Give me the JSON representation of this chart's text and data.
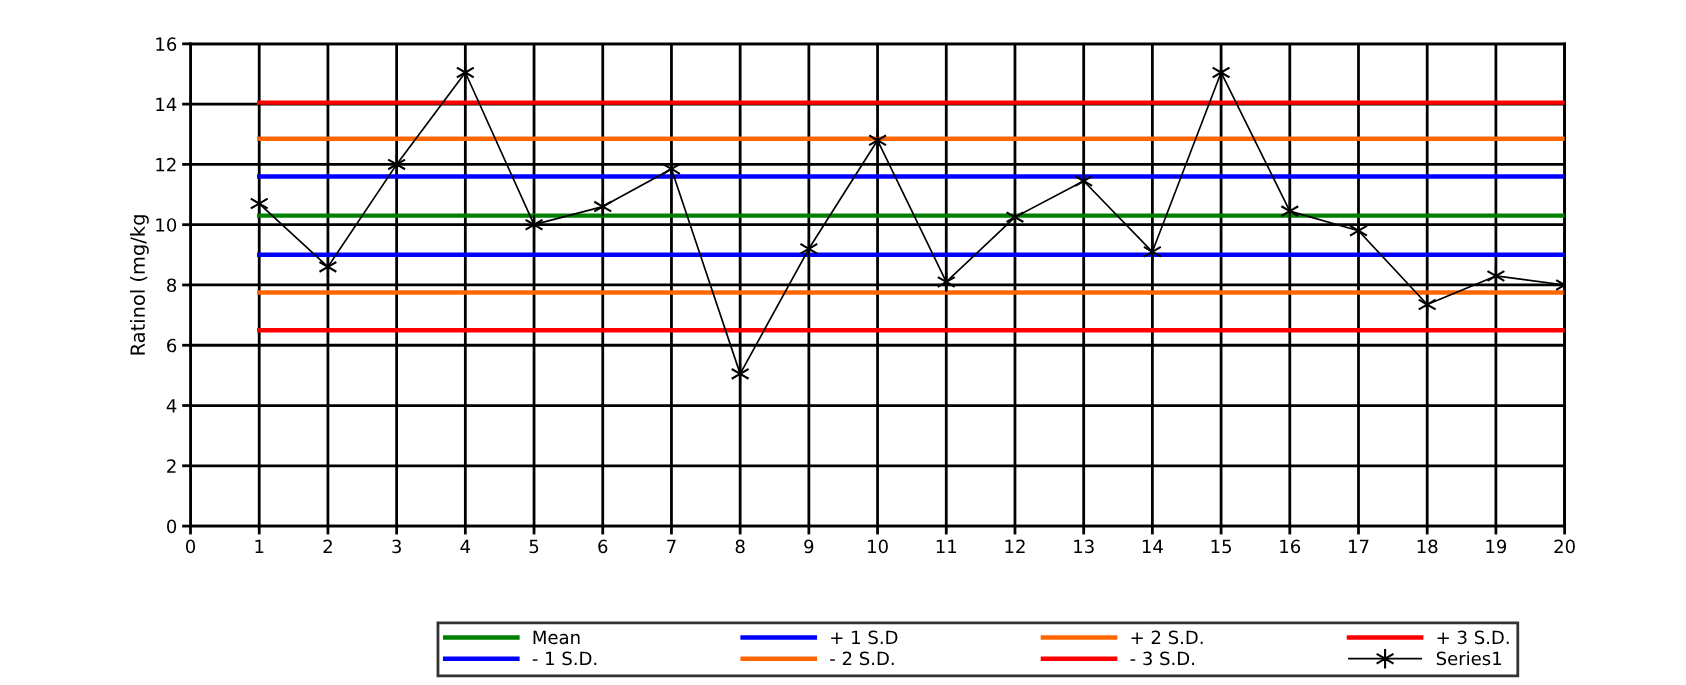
{
  "chart_data": {
    "type": "line",
    "ylabel": "Ratinol (mg/kg",
    "x": [
      1,
      2,
      3,
      4,
      5,
      6,
      7,
      8,
      9,
      10,
      11,
      12,
      13,
      14,
      15,
      16,
      17,
      18,
      19,
      20
    ],
    "xlim": [
      0,
      20
    ],
    "xticks": [
      0,
      1,
      2,
      3,
      4,
      5,
      6,
      7,
      8,
      9,
      10,
      11,
      12,
      13,
      14,
      15,
      16,
      17,
      18,
      19,
      20
    ],
    "ylim": [
      0,
      16
    ],
    "yticks": [
      0,
      2,
      4,
      6,
      8,
      10,
      12,
      14,
      16
    ],
    "grid": true,
    "legend": "bottom",
    "series": [
      {
        "name": "Mean",
        "color": "#008000",
        "marker": "none",
        "values": [
          10.3,
          10.3,
          10.3,
          10.3,
          10.3,
          10.3,
          10.3,
          10.3,
          10.3,
          10.3,
          10.3,
          10.3,
          10.3,
          10.3,
          10.3,
          10.3,
          10.3,
          10.3,
          10.3,
          10.3
        ]
      },
      {
        "name": "+ 1 S.D",
        "color": "#0000ff",
        "marker": "none",
        "values": [
          11.6,
          11.6,
          11.6,
          11.6,
          11.6,
          11.6,
          11.6,
          11.6,
          11.6,
          11.6,
          11.6,
          11.6,
          11.6,
          11.6,
          11.6,
          11.6,
          11.6,
          11.6,
          11.6,
          11.6
        ]
      },
      {
        "name": "+ 2 S.D.",
        "color": "#ff6600",
        "marker": "none",
        "values": [
          12.85,
          12.85,
          12.85,
          12.85,
          12.85,
          12.85,
          12.85,
          12.85,
          12.85,
          12.85,
          12.85,
          12.85,
          12.85,
          12.85,
          12.85,
          12.85,
          12.85,
          12.85,
          12.85,
          12.85
        ]
      },
      {
        "name": "+ 3 S.D.",
        "color": "#ff0000",
        "marker": "none",
        "values": [
          14.05,
          14.05,
          14.05,
          14.05,
          14.05,
          14.05,
          14.05,
          14.05,
          14.05,
          14.05,
          14.05,
          14.05,
          14.05,
          14.05,
          14.05,
          14.05,
          14.05,
          14.05,
          14.05,
          14.05
        ]
      },
      {
        "name": "- 1 S.D.",
        "color": "#0000ff",
        "marker": "none",
        "values": [
          9.0,
          9.0,
          9.0,
          9.0,
          9.0,
          9.0,
          9.0,
          9.0,
          9.0,
          9.0,
          9.0,
          9.0,
          9.0,
          9.0,
          9.0,
          9.0,
          9.0,
          9.0,
          9.0,
          9.0
        ]
      },
      {
        "name": "- 2 S.D.",
        "color": "#ff6600",
        "marker": "none",
        "values": [
          7.75,
          7.75,
          7.75,
          7.75,
          7.75,
          7.75,
          7.75,
          7.75,
          7.75,
          7.75,
          7.75,
          7.75,
          7.75,
          7.75,
          7.75,
          7.75,
          7.75,
          7.75,
          7.75,
          7.75
        ]
      },
      {
        "name": "- 3 S.D.",
        "color": "#ff0000",
        "marker": "none",
        "values": [
          6.5,
          6.5,
          6.5,
          6.5,
          6.5,
          6.5,
          6.5,
          6.5,
          6.5,
          6.5,
          6.5,
          6.5,
          6.5,
          6.5,
          6.5,
          6.5,
          6.5,
          6.5,
          6.5,
          6.5
        ]
      },
      {
        "name": "Series1",
        "color": "#000000",
        "marker": "cross",
        "values": [
          10.7,
          8.6,
          12.0,
          15.05,
          10.0,
          10.6,
          11.85,
          5.05,
          9.2,
          12.8,
          8.1,
          10.25,
          11.45,
          9.1,
          15.05,
          10.45,
          9.8,
          7.35,
          8.3,
          8.0
        ]
      }
    ]
  }
}
